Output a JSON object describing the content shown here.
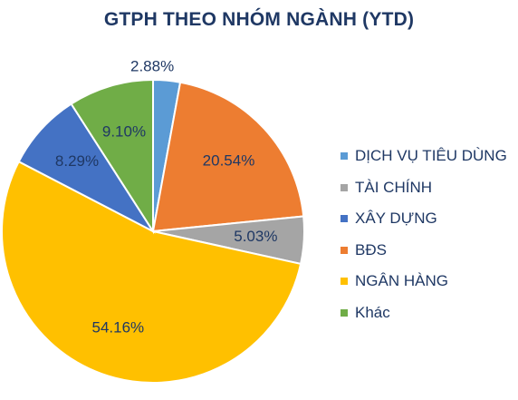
{
  "chart_data": {
    "type": "pie",
    "title": "GTPH THEO NHÓM NGÀNH (YTD)",
    "categories": [
      "DỊCH VỤ TIÊU DÙNG",
      "TÀI CHÍNH",
      "XÂY DỰNG",
      "BĐS",
      "NGÂN HÀNG",
      "Khác"
    ],
    "values": [
      2.88,
      5.03,
      8.29,
      20.54,
      54.16,
      9.1
    ],
    "value_labels": [
      "2.88%",
      "5.03%",
      "8.29%",
      "20.54%",
      "54.16%",
      "9.10%"
    ],
    "colors": [
      "#5b9bd5",
      "#a5a5a5",
      "#4472c4",
      "#ed7d31",
      "#ffc000",
      "#70ad47"
    ],
    "slice_order": [
      "DỊCH VỤ TIÊU DÙNG",
      "BĐS",
      "TÀI CHÍNH",
      "NGÂN HÀNG",
      "XÂY DỰNG",
      "Khác"
    ],
    "start_angle_deg": 0,
    "direction": "clockwise",
    "legend_position": "right"
  }
}
